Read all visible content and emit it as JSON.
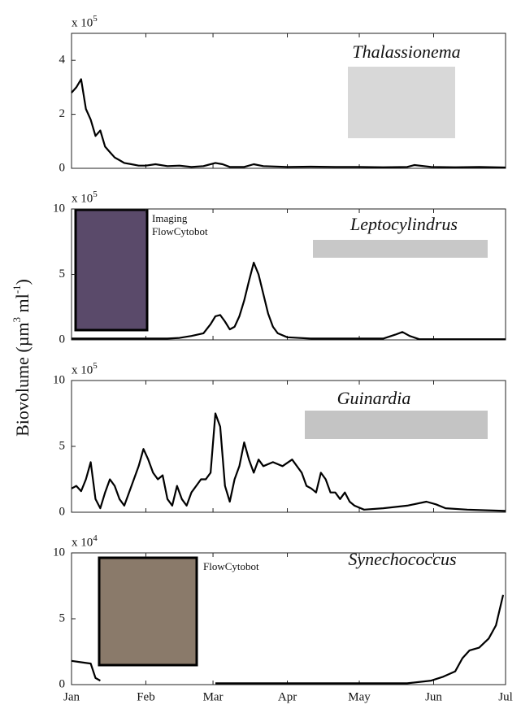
{
  "ylabel_parts": [
    "Biovolume (µm",
    "3",
    " ml",
    "-1",
    ")"
  ],
  "chart_data": [
    {
      "type": "line",
      "title": "Thalassionema",
      "scale_label": "x 10",
      "scale_exponent": "5",
      "color": "#000000",
      "x": [
        0,
        2,
        4,
        6,
        8,
        10,
        12,
        14,
        16,
        18,
        20,
        22,
        25,
        28,
        31,
        35,
        40,
        45,
        50,
        55,
        60,
        63,
        66,
        72,
        76,
        80,
        90,
        100,
        110,
        120,
        130,
        140,
        143,
        150,
        160,
        170,
        181
      ],
      "values": [
        2.8,
        3.0,
        3.3,
        2.2,
        1.8,
        1.2,
        1.4,
        0.8,
        0.6,
        0.4,
        0.3,
        0.2,
        0.15,
        0.1,
        0.1,
        0.15,
        0.08,
        0.1,
        0.05,
        0.08,
        0.2,
        0.15,
        0.05,
        0.05,
        0.15,
        0.08,
        0.05,
        0.06,
        0.05,
        0.05,
        0.04,
        0.05,
        0.12,
        0.05,
        0.04,
        0.05,
        0.03
      ],
      "xlim": [
        0,
        181
      ],
      "xticks": [
        0,
        31,
        59,
        90,
        120,
        151,
        181
      ],
      "ylim": [
        0,
        5
      ],
      "yticks": [
        0,
        2,
        4
      ]
    },
    {
      "type": "line",
      "title": "Leptocylindrus",
      "annotations": [
        "Imaging",
        "FlowCytobot"
      ],
      "scale_label": "x 10",
      "scale_exponent": "5",
      "color": "#000000",
      "x": [
        0,
        10,
        20,
        30,
        40,
        45,
        50,
        55,
        58,
        60,
        62,
        64,
        66,
        68,
        70,
        72,
        74,
        76,
        78,
        80,
        82,
        84,
        86,
        90,
        100,
        115,
        130,
        135,
        138,
        141,
        145,
        160,
        181
      ],
      "values": [
        0.1,
        0.1,
        0.1,
        0.1,
        0.1,
        0.15,
        0.3,
        0.5,
        1.2,
        1.8,
        1.9,
        1.4,
        0.8,
        1.0,
        1.8,
        3.0,
        4.5,
        5.9,
        5.0,
        3.5,
        2.0,
        1.0,
        0.5,
        0.2,
        0.1,
        0.1,
        0.1,
        0.4,
        0.6,
        0.3,
        0.05,
        0.05,
        0.05
      ],
      "xlim": [
        0,
        181
      ],
      "xticks": [
        0,
        31,
        59,
        90,
        120,
        151,
        181
      ],
      "ylim": [
        0,
        10
      ],
      "yticks": [
        0,
        5,
        10
      ]
    },
    {
      "type": "line",
      "title": "Guinardia",
      "scale_label": "x 10",
      "scale_exponent": "5",
      "color": "#000000",
      "x": [
        0,
        2,
        4,
        6,
        8,
        10,
        12,
        14,
        16,
        18,
        20,
        22,
        24,
        26,
        28,
        30,
        32,
        34,
        36,
        38,
        40,
        42,
        44,
        46,
        48,
        50,
        52,
        54,
        56,
        58,
        60,
        62,
        64,
        66,
        68,
        70,
        72,
        74,
        76,
        78,
        80,
        84,
        88,
        92,
        96,
        98,
        100,
        102,
        104,
        106,
        108,
        110,
        112,
        114,
        116,
        118,
        122,
        130,
        140,
        148,
        152,
        156,
        165,
        181
      ],
      "values": [
        1.8,
        2.0,
        1.6,
        2.5,
        3.8,
        1.0,
        0.3,
        1.5,
        2.5,
        2.0,
        1.0,
        0.5,
        1.5,
        2.5,
        3.5,
        4.8,
        4.0,
        3.0,
        2.5,
        2.8,
        1.0,
        0.5,
        2.0,
        1.0,
        0.5,
        1.5,
        2.0,
        2.5,
        2.5,
        3.0,
        7.5,
        6.5,
        2.0,
        0.8,
        2.5,
        3.5,
        5.3,
        4.0,
        3.0,
        4.0,
        3.5,
        3.8,
        3.5,
        4.0,
        3.0,
        2.0,
        1.8,
        1.5,
        3.0,
        2.5,
        1.5,
        1.5,
        1.0,
        1.5,
        0.8,
        0.5,
        0.2,
        0.3,
        0.5,
        0.8,
        0.6,
        0.3,
        0.2,
        0.1
      ],
      "xlim": [
        0,
        181
      ],
      "xticks": [
        0,
        31,
        59,
        90,
        120,
        151,
        181
      ],
      "ylim": [
        0,
        10
      ],
      "yticks": [
        0,
        5,
        10
      ]
    },
    {
      "type": "line",
      "title": "Synechococcus",
      "annotations": [
        "FlowCytobot"
      ],
      "scale_label": "x 10",
      "scale_exponent": "4",
      "color": "#000000",
      "x": [
        0,
        4,
        8,
        10,
        12,
        36,
        60,
        80,
        100,
        120,
        140,
        150,
        155,
        160,
        163,
        166,
        170,
        174,
        177,
        180
      ],
      "values": [
        1.8,
        1.7,
        1.6,
        0.5,
        0.3,
        null,
        0.1,
        0.1,
        0.1,
        0.1,
        0.1,
        0.3,
        0.6,
        1.0,
        2.0,
        2.6,
        2.8,
        3.5,
        4.5,
        6.8
      ],
      "xlim": [
        0,
        181
      ],
      "xticks": [
        {
          "value": 0,
          "label": "Jan"
        },
        {
          "value": 31,
          "label": "Feb"
        },
        {
          "value": 59,
          "label": "Mar"
        },
        {
          "value": 90,
          "label": "Apr"
        },
        {
          "value": 120,
          "label": "May"
        },
        {
          "value": 151,
          "label": "Jun"
        },
        {
          "value": 181,
          "label": "Jul"
        }
      ],
      "ylim": [
        0,
        10
      ],
      "yticks": [
        0,
        5,
        10
      ]
    }
  ]
}
